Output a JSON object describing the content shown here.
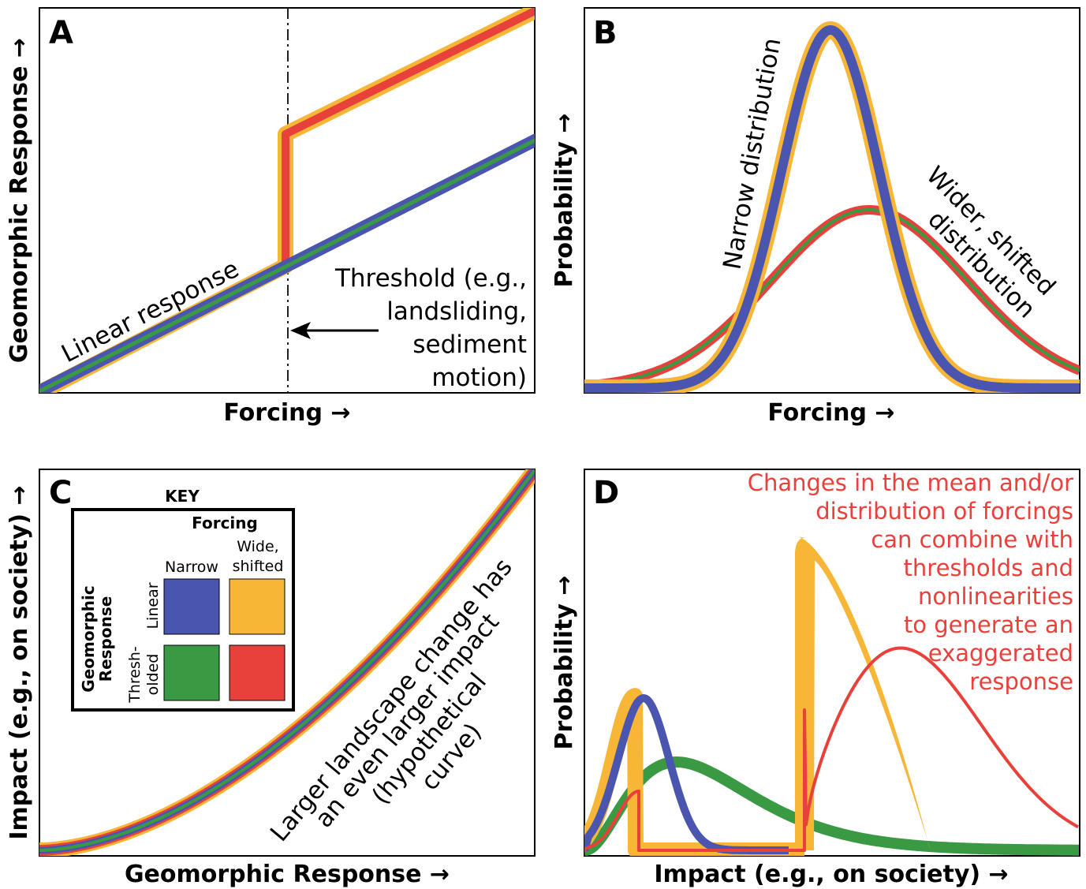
{
  "colors": {
    "linear_narrow": "#4a55b0",
    "linear_wide": "#f8b637",
    "thresholded_narrow": "#3a9a44",
    "thresholded_wide": "#e8403a",
    "red_text": "#e8403a"
  },
  "panels": {
    "A": {
      "letter": "A",
      "xlabel": "Forcing →",
      "ylabel": "Geomorphic Response →",
      "linear_label": "Linear response",
      "threshold_lines": [
        "Threshold (e.g.,",
        "landsliding,",
        "sediment",
        "motion)"
      ]
    },
    "B": {
      "letter": "B",
      "xlabel": "Forcing →",
      "ylabel": "Probability →",
      "narrow_label": "Narrow distribution",
      "wide_lines": [
        "Wider, shifted",
        "distribution"
      ]
    },
    "C": {
      "letter": "C",
      "xlabel": "Geomorphic Response →",
      "ylabel": "Impact (e.g., on society) →",
      "curve_lines": [
        "Larger landscape change has",
        "an even larger impact",
        "(hypothetical",
        "curve)"
      ],
      "key": {
        "title": "KEY",
        "forcing": "Forcing",
        "col_narrow": "Narrow",
        "col_wide_1": "Wide,",
        "col_wide_2": "shifted",
        "geo_1": "Geomorphic",
        "geo_2": "Response",
        "row_linear": "Linear",
        "row_thresh_1": "Thresh-",
        "row_thresh_2": "olded"
      }
    },
    "D": {
      "letter": "D",
      "xlabel": "Impact (e.g., on society) →",
      "ylabel": "Probability →",
      "note_lines": [
        "Changes in the mean and/or",
        "distribution of forcings",
        "can combine with",
        "thresholds and",
        "nonlinearities",
        "to generate an",
        "exaggerated",
        "response"
      ]
    }
  }
}
